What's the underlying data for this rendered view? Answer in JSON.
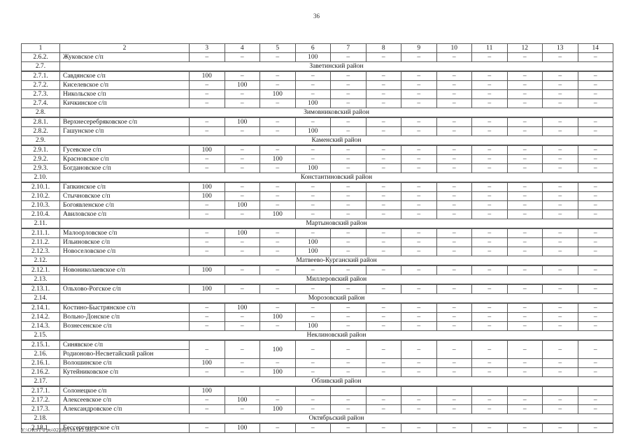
{
  "page": {
    "number": "36",
    "footer_path": "Y:\\ORST\\Ppo\\0228p110.f22.docx"
  },
  "table": {
    "header": [
      "1",
      "2",
      "3",
      "4",
      "5",
      "6",
      "7",
      "8",
      "9",
      "10",
      "11",
      "12",
      "13",
      "14"
    ],
    "rows": [
      {
        "type": "data",
        "num": "2.6.2.",
        "name": "Жуковское с/п",
        "values": [
          "–",
          "–",
          "–",
          "100",
          "–",
          "–",
          "–",
          "–",
          "–",
          "–",
          "–",
          "–"
        ]
      },
      {
        "type": "district",
        "num": "2.7.",
        "name": "Заветинский район"
      },
      {
        "type": "data",
        "num": "2.7.1.",
        "name": "Савдянское с/п",
        "values": [
          "100",
          "–",
          "–",
          "–",
          "–",
          "–",
          "–",
          "–",
          "–",
          "–",
          "–",
          "–"
        ]
      },
      {
        "type": "data",
        "num": "2.7.2.",
        "name": "Киселевское с/п",
        "values": [
          "–",
          "100",
          "–",
          "–",
          "–",
          "–",
          "–",
          "–",
          "–",
          "–",
          "–",
          "–"
        ]
      },
      {
        "type": "data",
        "num": "2.7.3.",
        "name": "Никольское с/п",
        "values": [
          "–",
          "–",
          "100",
          "–",
          "–",
          "–",
          "–",
          "–",
          "–",
          "–",
          "–",
          "–"
        ]
      },
      {
        "type": "data",
        "num": "2.7.4.",
        "name": "Кичкинское с/п",
        "values": [
          "–",
          "–",
          "–",
          "100",
          "–",
          "–",
          "–",
          "–",
          "–",
          "–",
          "–",
          "–"
        ]
      },
      {
        "type": "district",
        "num": "2.8.",
        "name": "Зимовниковский район"
      },
      {
        "type": "data",
        "num": "2.8.1.",
        "name": "Верхнесеребряковское с/п",
        "values": [
          "–",
          "100",
          "–",
          "–",
          "–",
          "–",
          "–",
          "–",
          "–",
          "–",
          "–",
          "–"
        ]
      },
      {
        "type": "data",
        "num": "2.8.2.",
        "name": "Гашунское с/п",
        "values": [
          "–",
          "–",
          "–",
          "100",
          "–",
          "–",
          "–",
          "–",
          "–",
          "–",
          "–",
          "–"
        ]
      },
      {
        "type": "district",
        "num": "2.9.",
        "name": "Каменский район"
      },
      {
        "type": "data",
        "num": "2.9.1.",
        "name": "Гусевское с/п",
        "values": [
          "100",
          "–",
          "–",
          "–",
          "–",
          "–",
          "–",
          "–",
          "–",
          "–",
          "–",
          "–"
        ]
      },
      {
        "type": "data",
        "num": "2.9.2.",
        "name": "Красновское с/п",
        "values": [
          "–",
          "–",
          "100",
          "–",
          "–",
          "–",
          "–",
          "–",
          "–",
          "–",
          "–",
          "–"
        ]
      },
      {
        "type": "data",
        "num": "2.9.3.",
        "name": "Богдановское с/п",
        "values": [
          "–",
          "–",
          "–",
          "100",
          "–",
          "–",
          "–",
          "–",
          "–",
          "–",
          "–",
          "–"
        ]
      },
      {
        "type": "district",
        "num": "2.10.",
        "name": "Константиновский район"
      },
      {
        "type": "data",
        "num": "2.10.1.",
        "name": "Гапкинское с/п",
        "values": [
          "100",
          "–",
          "–",
          "–",
          "–",
          "–",
          "–",
          "–",
          "–",
          "–",
          "–",
          "–"
        ]
      },
      {
        "type": "data",
        "num": "2.10.2.",
        "name": "Стычновское с/п",
        "values": [
          "100",
          "–",
          "–",
          "–",
          "–",
          "–",
          "–",
          "–",
          "–",
          "–",
          "–",
          "–"
        ]
      },
      {
        "type": "data",
        "num": "2.10.3.",
        "name": "Богоявленское с/п",
        "values": [
          "–",
          "100",
          "–",
          "–",
          "–",
          "–",
          "–",
          "–",
          "–",
          "–",
          "–",
          "–"
        ]
      },
      {
        "type": "data",
        "num": "2.10.4.",
        "name": "Авиловское с/п",
        "values": [
          "–",
          "–",
          "100",
          "–",
          "–",
          "–",
          "–",
          "–",
          "–",
          "–",
          "–",
          "–"
        ]
      },
      {
        "type": "district",
        "num": "2.11.",
        "name": "Мартыновский район"
      },
      {
        "type": "data",
        "num": "2.11.1.",
        "name": "Малоорловское с/п",
        "values": [
          "–",
          "100",
          "–",
          "–",
          "–",
          "–",
          "–",
          "–",
          "–",
          "–",
          "–",
          "–"
        ]
      },
      {
        "type": "data",
        "num": "2.11.2.",
        "name": "Ильиновское с/п",
        "values": [
          "–",
          "–",
          "–",
          "100",
          "–",
          "–",
          "–",
          "–",
          "–",
          "–",
          "–",
          "–"
        ]
      },
      {
        "type": "data",
        "num": "2.12.3.",
        "name": "Новоселовское с/п",
        "values": [
          "–",
          "–",
          "–",
          "100",
          "–",
          "–",
          "–",
          "–",
          "–",
          "–",
          "–",
          "–"
        ]
      },
      {
        "type": "district",
        "num": "2.12.",
        "name": "Матвеево-Курганский район"
      },
      {
        "type": "data",
        "num": "2.12.1.",
        "name": "Новониколаевское с/п",
        "values": [
          "100",
          "–",
          "–",
          "–",
          "–",
          "–",
          "–",
          "–",
          "–",
          "–",
          "–",
          "–"
        ]
      },
      {
        "type": "district",
        "num": "2.13.",
        "name": "Миллеровский район"
      },
      {
        "type": "data",
        "num": "2.13.1.",
        "name": "Ольхово-Рогское с/п",
        "values": [
          "100",
          "–",
          "–",
          "–",
          "–",
          "–",
          "–",
          "–",
          "–",
          "–",
          "–",
          "–"
        ]
      },
      {
        "type": "district",
        "num": "2.14.",
        "name": "Морозовский район"
      },
      {
        "type": "data",
        "num": "2.14.1.",
        "name": "Костино-Быстрянское с/п",
        "values": [
          "–",
          "100",
          "–",
          "–",
          "–",
          "–",
          "–",
          "–",
          "–",
          "–",
          "–",
          "–"
        ]
      },
      {
        "type": "data",
        "num": "2.14.2.",
        "name": "Вольно-Донское с/п",
        "values": [
          "–",
          "–",
          "100",
          "–",
          "–",
          "–",
          "–",
          "–",
          "–",
          "–",
          "–",
          "–"
        ]
      },
      {
        "type": "data",
        "num": "2.14.3.",
        "name": "Вознесенское с/п",
        "values": [
          "–",
          "–",
          "–",
          "100",
          "–",
          "–",
          "–",
          "–",
          "–",
          "–",
          "–",
          "–"
        ]
      },
      {
        "type": "district",
        "num": "2.15.",
        "name": "Неклиновский район"
      },
      {
        "type": "data-span2",
        "num": "2.15.1.",
        "name": "Синявское с/п",
        "values": [
          "–",
          "–",
          "100",
          "–",
          "–",
          "–",
          "–",
          "–",
          "–",
          "–",
          "–",
          "–"
        ]
      },
      {
        "type": "district-left",
        "num": "2.16.",
        "name": "Родионово-Несветайский район"
      },
      {
        "type": "data",
        "num": "2.16.1.",
        "name": "Волошинское с/п",
        "values": [
          "100",
          "–",
          "–",
          "–",
          "–",
          "–",
          "–",
          "–",
          "–",
          "–",
          "–",
          "–"
        ]
      },
      {
        "type": "data",
        "num": "2.16.2.",
        "name": "Кутейниковское с/п",
        "values": [
          "–",
          "–",
          "100",
          "–",
          "–",
          "–",
          "–",
          "–",
          "–",
          "–",
          "–",
          "–"
        ]
      },
      {
        "type": "district",
        "num": "2.17.",
        "name": "Обливский район"
      },
      {
        "type": "data",
        "num": "2.17.1.",
        "name": "Солонецкое с/п",
        "values": [
          "100",
          "",
          "",
          "",
          "",
          "",
          "",
          "",
          "",
          "",
          "",
          ""
        ]
      },
      {
        "type": "data",
        "num": "2.17.2.",
        "name": "Алексеевское с/п",
        "values": [
          "–",
          "100",
          "–",
          "–",
          "–",
          "–",
          "–",
          "–",
          "–",
          "–",
          "–",
          "–"
        ]
      },
      {
        "type": "data",
        "num": "2.17.3.",
        "name": "Александровское с/п",
        "values": [
          "–",
          "–",
          "100",
          "–",
          "–",
          "–",
          "–",
          "–",
          "–",
          "–",
          "–",
          "–"
        ]
      },
      {
        "type": "district",
        "num": "2.18.",
        "name": "Октябрьский район"
      },
      {
        "type": "data",
        "num": "2.18.1.",
        "name": "Бессергеневское с/п",
        "values": [
          "–",
          "100",
          "–",
          "–",
          "–",
          "–",
          "–",
          "–",
          "–",
          "–",
          "–",
          "–"
        ]
      }
    ]
  }
}
